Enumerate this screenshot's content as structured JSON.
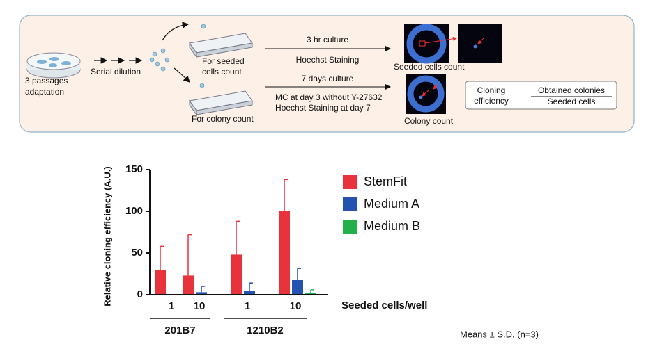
{
  "diagram": {
    "start_label": [
      "3 passages",
      "adaptation"
    ],
    "dilution_label": "Serial dilution",
    "seeded_plate_label": [
      "For seeded",
      "cells count"
    ],
    "colony_plate_label": "For colony count",
    "seeded_step": {
      "above": "3 hr culture",
      "below": [
        "Hoechst Staining"
      ]
    },
    "colony_step": {
      "above": "7 days culture",
      "below": [
        "MC at day 3 without Y-27632",
        "Hoechst Staining at day 7"
      ]
    },
    "seeded_result": "Seeded cells count",
    "colony_result": "Colony count",
    "formula": {
      "term": [
        "Cloning",
        "efficiency"
      ],
      "equals": "=",
      "numerator": "Obtained colonies",
      "denominator": "Seeded cells"
    }
  },
  "chart_data": {
    "type": "bar",
    "ylabel": "Relative cloning efficiency (A.U.)",
    "xlabel": "Seeded cells/well",
    "categories": [
      "1",
      "10",
      "1",
      "10"
    ],
    "groups": [
      {
        "label": "201B7",
        "categories": [
          0,
          1
        ]
      },
      {
        "label": "1210B2",
        "categories": [
          2,
          3
        ]
      }
    ],
    "series": [
      {
        "name": "StemFit",
        "color": "#e8323c",
        "values": [
          30,
          23,
          48,
          100
        ],
        "errors": [
          28,
          49,
          40,
          38
        ]
      },
      {
        "name": "Medium A",
        "color": "#2352b0",
        "values": [
          0,
          3,
          5,
          17.5
        ],
        "errors": [
          0,
          7,
          9,
          14
        ]
      },
      {
        "name": "Medium B",
        "color": "#22b04a",
        "values": [
          0,
          0,
          0,
          2.5
        ],
        "errors": [
          0,
          0,
          0,
          3.5
        ]
      }
    ],
    "ylim": [
      0,
      150
    ],
    "yticks": [
      0,
      50,
      100,
      150
    ],
    "note": "Means ± S.D. (n=3)"
  }
}
